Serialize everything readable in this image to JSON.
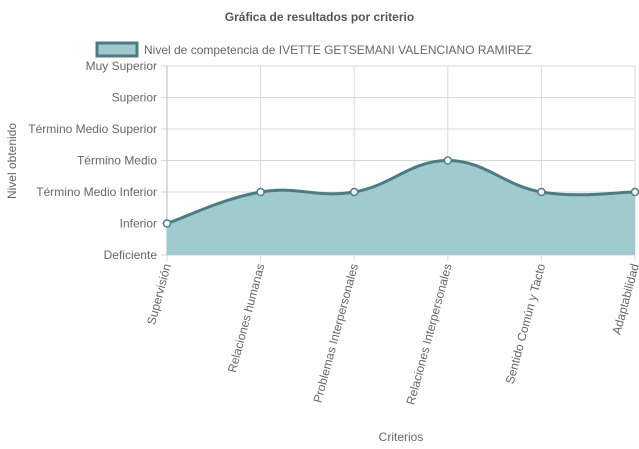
{
  "chart_data": {
    "type": "area",
    "title": "Gráfica de resultados por criterio",
    "xlabel": "Criterios",
    "ylabel": "Nivel obtenido",
    "categories": [
      "Supervisión",
      "Relaciones humanas",
      "Problemas Interpersonales",
      "Relaciones Interpersonales",
      "Sentido Común y Tacto",
      "Adaptabilidad"
    ],
    "y_levels": [
      "Deficiente",
      "Inferior",
      "Término Medio Inferior",
      "Término Medio",
      "Término Medio Superior",
      "Superior",
      "Muy Superior"
    ],
    "ylim": [
      0,
      6
    ],
    "series": [
      {
        "name": "Nivel de competencia de IVETTE GETSEMANI VALENCIANO RAMIREZ",
        "values": [
          1,
          2,
          2,
          3,
          2,
          2
        ]
      }
    ],
    "grid": true,
    "legend_position": "top",
    "colors": {
      "fill": "#a0cbce",
      "line": "#4f7b7f",
      "grid": "#d9d9d9",
      "point_fill": "#ffffff",
      "text": "#666666",
      "title": "#555555"
    }
  }
}
